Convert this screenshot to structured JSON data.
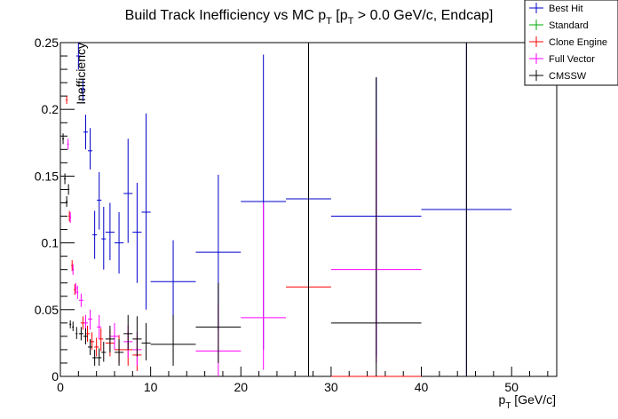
{
  "chart_data": {
    "type": "scatter",
    "title": "Build Track Inefficiency vs MC p",
    "title_sub": "T",
    "title_mid": " [p",
    "title_sub2": "T",
    "title_rest": " > 0.0 GeV/c, Endcap]",
    "xlabel": "p",
    "xlabel_sub": "T",
    "xlabel_unit": " [GeV/c]",
    "ylabel": "Inefficiency",
    "xlim": [
      0,
      55
    ],
    "ylim": [
      0,
      0.25
    ],
    "xticks": [
      0,
      10,
      20,
      30,
      40,
      50
    ],
    "xtick_labels": [
      "0",
      "10",
      "20",
      "30",
      "40",
      "50"
    ],
    "yticks": [
      0,
      0.05,
      0.1,
      0.15,
      0.2,
      0.25
    ],
    "ytick_labels": [
      "0",
      "0.05",
      "0.1",
      "0.15",
      "0.2",
      "0.25"
    ],
    "legend": [
      {
        "name": "Best Hit",
        "color": "#0000cc"
      },
      {
        "name": "Standard",
        "color": "#00aa00"
      },
      {
        "name": "Clone Engine",
        "color": "#ff0000"
      },
      {
        "name": "Full Vector",
        "color": "#ff00ff"
      },
      {
        "name": "CMSSW",
        "color": "#000000"
      }
    ],
    "series": [
      {
        "name": "Best Hit",
        "color": "#0000cc",
        "points": [
          {
            "x": 2.0,
            "xerr": 0.25,
            "y": 0.24,
            "ylo": 0.23,
            "yhi": 0.25
          },
          {
            "x": 2.5,
            "xerr": 0.25,
            "y": 0.215,
            "ylo": 0.206,
            "yhi": 0.223
          },
          {
            "x": 2.8,
            "xerr": 0.25,
            "y": 0.183,
            "ylo": 0.17,
            "yhi": 0.196
          },
          {
            "x": 3.3,
            "xerr": 0.25,
            "y": 0.169,
            "ylo": 0.155,
            "yhi": 0.186
          },
          {
            "x": 3.8,
            "xerr": 0.25,
            "y": 0.106,
            "ylo": 0.088,
            "yhi": 0.124
          },
          {
            "x": 4.3,
            "xerr": 0.25,
            "y": 0.132,
            "ylo": 0.11,
            "yhi": 0.153
          },
          {
            "x": 4.8,
            "xerr": 0.25,
            "y": 0.103,
            "ylo": 0.08,
            "yhi": 0.127
          },
          {
            "x": 5.5,
            "xerr": 0.5,
            "y": 0.108,
            "ylo": 0.087,
            "yhi": 0.13
          },
          {
            "x": 6.5,
            "xerr": 0.5,
            "y": 0.1,
            "ylo": 0.077,
            "yhi": 0.123
          },
          {
            "x": 7.5,
            "xerr": 0.5,
            "y": 0.137,
            "ylo": 0.1,
            "yhi": 0.178
          },
          {
            "x": 8.5,
            "xerr": 0.5,
            "y": 0.108,
            "ylo": 0.07,
            "yhi": 0.145
          },
          {
            "x": 9.5,
            "xerr": 0.5,
            "y": 0.123,
            "ylo": 0.05,
            "yhi": 0.197
          },
          {
            "x": 12.5,
            "xerr": 2.5,
            "y": 0.071,
            "ylo": 0.042,
            "yhi": 0.102
          },
          {
            "x": 17.5,
            "xerr": 2.5,
            "y": 0.093,
            "ylo": 0.035,
            "yhi": 0.151
          },
          {
            "x": 22.5,
            "xerr": 2.5,
            "y": 0.131,
            "ylo": 0.02,
            "yhi": 0.241
          },
          {
            "x": 27.5,
            "xerr": 2.5,
            "y": 0.133,
            "ylo": 0.017,
            "yhi": 0.25
          },
          {
            "x": 35.0,
            "xerr": 5.0,
            "y": 0.12,
            "ylo": 0.015,
            "yhi": 0.224
          },
          {
            "x": 45.0,
            "xerr": 5.0,
            "y": 0.125,
            "ylo": 0.0,
            "yhi": 0.25
          }
        ]
      },
      {
        "name": "Clone Engine",
        "color": "#ff0000",
        "points": [
          {
            "x": 0.7,
            "xerr": 0.1,
            "y": 0.207,
            "ylo": 0.204,
            "yhi": 0.21
          },
          {
            "x": 1.0,
            "xerr": 0.1,
            "y": 0.12,
            "ylo": 0.116,
            "yhi": 0.124
          },
          {
            "x": 1.3,
            "xerr": 0.1,
            "y": 0.083,
            "ylo": 0.079,
            "yhi": 0.087
          },
          {
            "x": 1.6,
            "xerr": 0.1,
            "y": 0.065,
            "ylo": 0.061,
            "yhi": 0.069
          },
          {
            "x": 2.5,
            "xerr": 0.25,
            "y": 0.04,
            "ylo": 0.035,
            "yhi": 0.045
          },
          {
            "x": 3.0,
            "xerr": 0.25,
            "y": 0.032,
            "ylo": 0.026,
            "yhi": 0.038
          },
          {
            "x": 3.5,
            "xerr": 0.25,
            "y": 0.026,
            "ylo": 0.02,
            "yhi": 0.033
          },
          {
            "x": 4.0,
            "xerr": 0.25,
            "y": 0.022,
            "ylo": 0.015,
            "yhi": 0.029
          },
          {
            "x": 4.5,
            "xerr": 0.25,
            "y": 0.028,
            "ylo": 0.019,
            "yhi": 0.036
          },
          {
            "x": 5.5,
            "xerr": 0.5,
            "y": 0.025,
            "ylo": 0.015,
            "yhi": 0.035
          },
          {
            "x": 6.5,
            "xerr": 0.5,
            "y": 0.02,
            "ylo": 0.01,
            "yhi": 0.031
          },
          {
            "x": 7.5,
            "xerr": 0.5,
            "y": 0.02,
            "ylo": 0.008,
            "yhi": 0.033
          },
          {
            "x": 8.5,
            "xerr": 0.5,
            "y": 0.016,
            "ylo": 0.004,
            "yhi": 0.03
          },
          {
            "x": 27.5,
            "xerr": 2.5,
            "y": 0.067,
            "ylo": 0.01,
            "yhi": 0.201
          },
          {
            "x": 35.0,
            "xerr": 5.0,
            "y": 0.0,
            "ylo": 0.0,
            "yhi": 0.0
          },
          {
            "x": 45.0,
            "xerr": 5.0,
            "y": 0.0,
            "ylo": 0.0,
            "yhi": 0.0
          }
        ]
      },
      {
        "name": "Full Vector",
        "color": "#ff00ff",
        "points": [
          {
            "x": 0.85,
            "xerr": 0.1,
            "y": 0.174,
            "ylo": 0.17,
            "yhi": 0.178
          },
          {
            "x": 1.1,
            "xerr": 0.1,
            "y": 0.119,
            "ylo": 0.115,
            "yhi": 0.123
          },
          {
            "x": 1.4,
            "xerr": 0.1,
            "y": 0.08,
            "ylo": 0.076,
            "yhi": 0.084
          },
          {
            "x": 1.7,
            "xerr": 0.1,
            "y": 0.066,
            "ylo": 0.062,
            "yhi": 0.07
          },
          {
            "x": 1.9,
            "xerr": 0.1,
            "y": 0.063,
            "ylo": 0.058,
            "yhi": 0.068
          },
          {
            "x": 2.3,
            "xerr": 0.25,
            "y": 0.057,
            "ylo": 0.052,
            "yhi": 0.062
          },
          {
            "x": 2.8,
            "xerr": 0.25,
            "y": 0.04,
            "ylo": 0.034,
            "yhi": 0.046
          },
          {
            "x": 3.3,
            "xerr": 0.25,
            "y": 0.043,
            "ylo": 0.035,
            "yhi": 0.05
          },
          {
            "x": 4.3,
            "xerr": 0.25,
            "y": 0.037,
            "ylo": 0.028,
            "yhi": 0.046
          },
          {
            "x": 6.0,
            "xerr": 0.5,
            "y": 0.03,
            "ylo": 0.02,
            "yhi": 0.04
          },
          {
            "x": 7.5,
            "xerr": 0.5,
            "y": 0.026,
            "ylo": 0.014,
            "yhi": 0.038
          },
          {
            "x": 8.5,
            "xerr": 0.5,
            "y": 0.02,
            "ylo": 0.008,
            "yhi": 0.033
          },
          {
            "x": 17.5,
            "xerr": 2.5,
            "y": 0.019,
            "ylo": 0.0,
            "yhi": 0.055
          },
          {
            "x": 22.5,
            "xerr": 2.5,
            "y": 0.044,
            "ylo": 0.005,
            "yhi": 0.13
          },
          {
            "x": 35.0,
            "xerr": 5.0,
            "y": 0.08,
            "ylo": 0.01,
            "yhi": 0.178
          }
        ]
      },
      {
        "name": "CMSSW",
        "color": "#000000",
        "points": [
          {
            "x": 0.3,
            "xerr": 0.1,
            "y": 0.178,
            "ylo": 0.174,
            "yhi": 0.182
          },
          {
            "x": 0.5,
            "xerr": 0.1,
            "y": 0.148,
            "ylo": 0.144,
            "yhi": 0.152
          },
          {
            "x": 0.7,
            "xerr": 0.1,
            "y": 0.131,
            "ylo": 0.127,
            "yhi": 0.135
          },
          {
            "x": 0.9,
            "xerr": 0.1,
            "y": 0.14,
            "ylo": 0.136,
            "yhi": 0.144
          },
          {
            "x": 1.1,
            "xerr": 0.1,
            "y": 0.039,
            "ylo": 0.036,
            "yhi": 0.042
          },
          {
            "x": 1.4,
            "xerr": 0.1,
            "y": 0.037,
            "ylo": 0.034,
            "yhi": 0.041
          },
          {
            "x": 1.8,
            "xerr": 0.1,
            "y": 0.032,
            "ylo": 0.028,
            "yhi": 0.037
          },
          {
            "x": 2.3,
            "xerr": 0.25,
            "y": 0.032,
            "ylo": 0.027,
            "yhi": 0.037
          },
          {
            "x": 2.8,
            "xerr": 0.25,
            "y": 0.03,
            "ylo": 0.024,
            "yhi": 0.036
          },
          {
            "x": 3.3,
            "xerr": 0.25,
            "y": 0.022,
            "ylo": 0.016,
            "yhi": 0.028
          },
          {
            "x": 3.8,
            "xerr": 0.25,
            "y": 0.014,
            "ylo": 0.008,
            "yhi": 0.02
          },
          {
            "x": 4.3,
            "xerr": 0.25,
            "y": 0.014,
            "ylo": 0.008,
            "yhi": 0.021
          },
          {
            "x": 4.8,
            "xerr": 0.25,
            "y": 0.018,
            "ylo": 0.011,
            "yhi": 0.026
          },
          {
            "x": 5.5,
            "xerr": 0.5,
            "y": 0.028,
            "ylo": 0.018,
            "yhi": 0.038
          },
          {
            "x": 6.5,
            "xerr": 0.5,
            "y": 0.018,
            "ylo": 0.008,
            "yhi": 0.028
          },
          {
            "x": 7.5,
            "xerr": 0.5,
            "y": 0.032,
            "ylo": 0.02,
            "yhi": 0.046
          },
          {
            "x": 8.5,
            "xerr": 0.5,
            "y": 0.028,
            "ylo": 0.015,
            "yhi": 0.045
          },
          {
            "x": 9.5,
            "xerr": 0.5,
            "y": 0.025,
            "ylo": 0.012,
            "yhi": 0.04
          },
          {
            "x": 12.5,
            "xerr": 2.5,
            "y": 0.024,
            "ylo": 0.008,
            "yhi": 0.046
          },
          {
            "x": 17.5,
            "xerr": 2.5,
            "y": 0.037,
            "ylo": 0.01,
            "yhi": 0.07
          },
          {
            "x": 27.5,
            "xerr": 2.5,
            "y": 0.0,
            "ylo": 0.0,
            "yhi": 0.25
          },
          {
            "x": 35.0,
            "xerr": 5.0,
            "y": 0.04,
            "ylo": 0.0,
            "yhi": 0.224
          },
          {
            "x": 45.0,
            "xerr": 5.0,
            "y": 0.0,
            "ylo": 0.0,
            "yhi": 0.25
          }
        ]
      }
    ]
  }
}
